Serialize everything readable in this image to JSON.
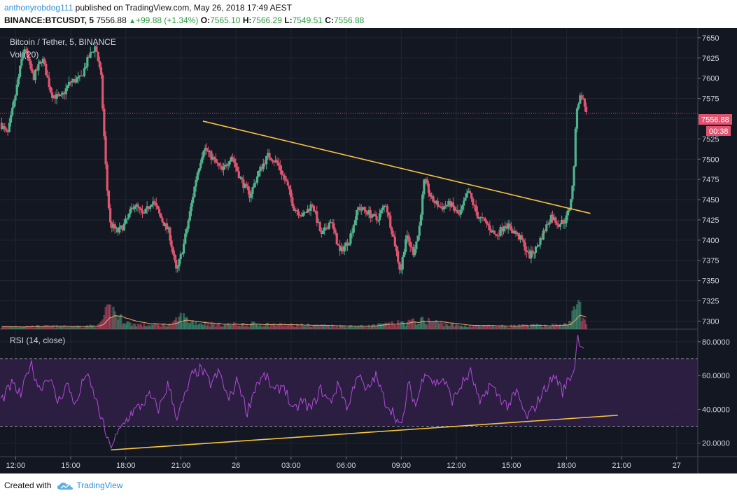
{
  "header": {
    "user": "anthonyrobdog111",
    "published": "published on TradingView.com, May 26, 2018 17:49 AEST",
    "symbol": "BINANCE:BTCUSDT, 5",
    "last": "7556.88",
    "change": "+99.88 (+1.34%)",
    "o_label": "O:",
    "o": "7565.10",
    "h_label": "H:",
    "h": "7566.29",
    "l_label": "L:",
    "l": "7549.51",
    "c_label": "C:",
    "c": "7556.88"
  },
  "legend": {
    "title": "Bitcoin / Tether, 5, BINANCE",
    "vol": "Vol (20)",
    "rsi": "RSI (14, close)"
  },
  "price_tag": "7556.88",
  "countdown": "00:38",
  "footer": {
    "created": "Created with",
    "brand": "TradingView"
  },
  "colors": {
    "bg": "#131722",
    "up": "#4fb38c",
    "down": "#e05470",
    "rsi": "#b14cd8",
    "trend": "#f5c242",
    "band": "#2f1f45"
  },
  "chart_data": [
    {
      "type": "candlestick",
      "title": "Bitcoin / Tether, 5, BINANCE",
      "y_ticks": [
        7300,
        7325,
        7350,
        7375,
        7400,
        7425,
        7450,
        7475,
        7500,
        7525,
        7550,
        7575,
        7600,
        7625,
        7650
      ],
      "ylim": [
        7290,
        7662
      ],
      "x_ticks": [
        "12:00",
        "15:00",
        "18:00",
        "21:00",
        "26",
        "03:00",
        "06:00",
        "09:00",
        "12:00",
        "15:00",
        "18:00",
        "21:00",
        "27"
      ],
      "x_tick_hours": [
        12,
        15,
        18,
        21,
        24,
        27,
        30,
        33,
        36,
        39,
        42,
        45,
        48
      ],
      "xlim_hours": [
        11.15,
        49.15
      ],
      "last_price": 7556.88,
      "path_points": [
        [
          11.2,
          7545
        ],
        [
          11.6,
          7530
        ],
        [
          12.0,
          7575
        ],
        [
          12.5,
          7640
        ],
        [
          13.0,
          7600
        ],
        [
          13.5,
          7625
        ],
        [
          14.0,
          7580
        ],
        [
          14.5,
          7575
        ],
        [
          15.0,
          7595
        ],
        [
          15.6,
          7600
        ],
        [
          16.0,
          7625
        ],
        [
          16.4,
          7640
        ],
        [
          16.7,
          7600
        ],
        [
          17.0,
          7470
        ],
        [
          17.2,
          7420
        ],
        [
          17.6,
          7410
        ],
        [
          18.0,
          7420
        ],
        [
          18.5,
          7445
        ],
        [
          19.0,
          7430
        ],
        [
          19.5,
          7450
        ],
        [
          20.0,
          7425
        ],
        [
          20.4,
          7410
        ],
        [
          20.8,
          7360
        ],
        [
          21.2,
          7395
        ],
        [
          21.5,
          7430
        ],
        [
          21.9,
          7480
        ],
        [
          22.3,
          7515
        ],
        [
          22.8,
          7500
        ],
        [
          23.3,
          7485
        ],
        [
          23.8,
          7505
        ],
        [
          24.3,
          7475
        ],
        [
          24.8,
          7455
        ],
        [
          25.3,
          7485
        ],
        [
          25.8,
          7505
        ],
        [
          26.3,
          7495
        ],
        [
          26.8,
          7470
        ],
        [
          27.2,
          7440
        ],
        [
          27.7,
          7430
        ],
        [
          28.2,
          7445
        ],
        [
          28.7,
          7405
        ],
        [
          29.2,
          7425
        ],
        [
          29.7,
          7385
        ],
        [
          30.2,
          7400
        ],
        [
          30.7,
          7440
        ],
        [
          31.2,
          7435
        ],
        [
          31.7,
          7425
        ],
        [
          32.2,
          7445
        ],
        [
          32.7,
          7395
        ],
        [
          33.0,
          7360
        ],
        [
          33.3,
          7405
        ],
        [
          33.7,
          7385
        ],
        [
          34.0,
          7410
        ],
        [
          34.3,
          7475
        ],
        [
          34.7,
          7450
        ],
        [
          35.2,
          7440
        ],
        [
          35.7,
          7445
        ],
        [
          36.2,
          7430
        ],
        [
          36.7,
          7460
        ],
        [
          37.2,
          7430
        ],
        [
          37.7,
          7420
        ],
        [
          38.2,
          7405
        ],
        [
          38.7,
          7420
        ],
        [
          39.2,
          7410
        ],
        [
          39.6,
          7400
        ],
        [
          40.0,
          7380
        ],
        [
          40.4,
          7390
        ],
        [
          40.8,
          7410
        ],
        [
          41.2,
          7430
        ],
        [
          41.6,
          7420
        ],
        [
          42.0,
          7425
        ],
        [
          42.2,
          7440
        ],
        [
          42.4,
          7470
        ],
        [
          42.6,
          7565
        ],
        [
          42.85,
          7580
        ],
        [
          43.1,
          7560
        ]
      ],
      "trendline": [
        [
          22.2,
          7547
        ],
        [
          43.3,
          7433
        ]
      ]
    },
    {
      "type": "bar",
      "name": "Vol (20)",
      "ylim": [
        0,
        100
      ],
      "volume_profile": [
        [
          11.2,
          8
        ],
        [
          13.0,
          10
        ],
        [
          15.0,
          9
        ],
        [
          16.5,
          12
        ],
        [
          16.9,
          55
        ],
        [
          17.2,
          70
        ],
        [
          17.6,
          40
        ],
        [
          18.2,
          18
        ],
        [
          19.0,
          14
        ],
        [
          20.5,
          16
        ],
        [
          21.0,
          45
        ],
        [
          21.5,
          25
        ],
        [
          23.0,
          15
        ],
        [
          25.0,
          18
        ],
        [
          27.0,
          14
        ],
        [
          29.0,
          12
        ],
        [
          31.0,
          10
        ],
        [
          33.0,
          22
        ],
        [
          34.3,
          30
        ],
        [
          36.0,
          12
        ],
        [
          38.0,
          10
        ],
        [
          40.0,
          12
        ],
        [
          42.0,
          15
        ],
        [
          42.4,
          60
        ],
        [
          42.6,
          100
        ],
        [
          42.85,
          35
        ],
        [
          43.1,
          10
        ]
      ]
    },
    {
      "type": "line",
      "name": "RSI (14, close)",
      "y_ticks": [
        20,
        40,
        60,
        80
      ],
      "y_tick_labels": [
        "20.0000",
        "40.0000",
        "60.0000",
        "80.0000"
      ],
      "ylim": [
        12,
        87
      ],
      "band": [
        30,
        70
      ],
      "points": [
        [
          11.2,
          45
        ],
        [
          11.8,
          55
        ],
        [
          12.3,
          48
        ],
        [
          12.8,
          68
        ],
        [
          13.3,
          52
        ],
        [
          13.8,
          60
        ],
        [
          14.3,
          44
        ],
        [
          14.8,
          55
        ],
        [
          15.3,
          42
        ],
        [
          15.8,
          62
        ],
        [
          16.3,
          48
        ],
        [
          16.8,
          30
        ],
        [
          17.1,
          18
        ],
        [
          17.4,
          22
        ],
        [
          17.8,
          30
        ],
        [
          18.3,
          38
        ],
        [
          18.8,
          42
        ],
        [
          19.3,
          48
        ],
        [
          19.8,
          40
        ],
        [
          20.3,
          55
        ],
        [
          20.8,
          35
        ],
        [
          21.3,
          50
        ],
        [
          21.6,
          60
        ],
        [
          22.1,
          64
        ],
        [
          22.6,
          55
        ],
        [
          23.1,
          62
        ],
        [
          23.6,
          45
        ],
        [
          24.1,
          58
        ],
        [
          24.6,
          38
        ],
        [
          25.1,
          55
        ],
        [
          25.6,
          60
        ],
        [
          26.1,
          50
        ],
        [
          26.6,
          55
        ],
        [
          27.1,
          38
        ],
        [
          27.6,
          45
        ],
        [
          28.1,
          40
        ],
        [
          28.6,
          52
        ],
        [
          29.1,
          44
        ],
        [
          29.6,
          55
        ],
        [
          30.1,
          40
        ],
        [
          30.6,
          62
        ],
        [
          31.1,
          50
        ],
        [
          31.6,
          60
        ],
        [
          32.1,
          45
        ],
        [
          32.6,
          38
        ],
        [
          33.0,
          28
        ],
        [
          33.4,
          55
        ],
        [
          33.8,
          42
        ],
        [
          34.3,
          64
        ],
        [
          34.8,
          55
        ],
        [
          35.3,
          58
        ],
        [
          35.8,
          45
        ],
        [
          36.3,
          55
        ],
        [
          36.8,
          62
        ],
        [
          37.3,
          42
        ],
        [
          37.8,
          55
        ],
        [
          38.3,
          48
        ],
        [
          38.8,
          42
        ],
        [
          39.3,
          50
        ],
        [
          39.8,
          35
        ],
        [
          40.2,
          40
        ],
        [
          40.6,
          48
        ],
        [
          41.0,
          55
        ],
        [
          41.4,
          60
        ],
        [
          41.8,
          50
        ],
        [
          42.1,
          58
        ],
        [
          42.4,
          62
        ],
        [
          42.6,
          83
        ],
        [
          42.85,
          78
        ],
        [
          43.0,
          75
        ]
      ],
      "trendline": [
        [
          17.2,
          16
        ],
        [
          44.8,
          36.5
        ]
      ]
    }
  ]
}
